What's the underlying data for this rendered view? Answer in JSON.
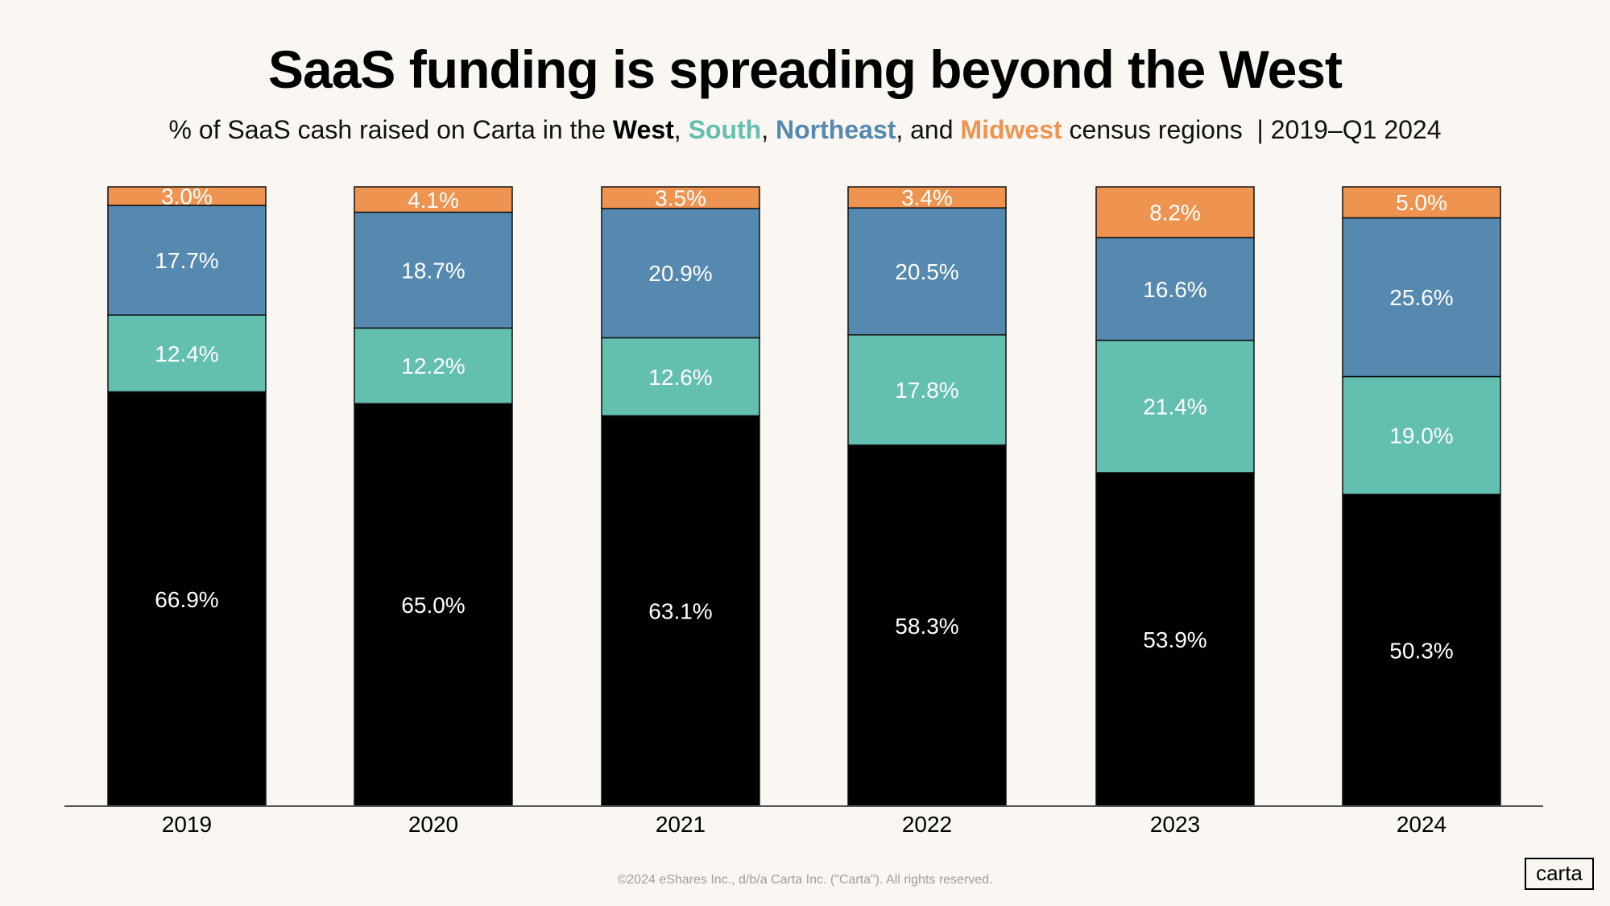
{
  "title": "SaaS funding is spreading beyond the West",
  "subtitle": {
    "prefix": "% of SaaS cash raised on Carta in the ",
    "west": "West",
    "sep1": ", ",
    "south": "South",
    "sep2": ", ",
    "northeast": "Northeast",
    "sep3": ", and ",
    "midwest": "Midwest",
    "suffix": " census regions  | 2019–Q1 2024"
  },
  "footer": "©2024 eShares Inc., d/b/a Carta Inc. (\"Carta\"). All rights reserved.",
  "logo": "carta",
  "colors": {
    "West": "#000000",
    "South": "#63bfb0",
    "Northeast": "#5589b0",
    "Midwest": "#ee9350",
    "background": "#faf7f2"
  },
  "chart_data": {
    "type": "bar",
    "stacked": true,
    "categories": [
      "2019",
      "2020",
      "2021",
      "2022",
      "2023",
      "2024"
    ],
    "series": [
      {
        "name": "West",
        "values": [
          66.9,
          65.0,
          63.1,
          58.3,
          53.9,
          50.3
        ]
      },
      {
        "name": "South",
        "values": [
          12.4,
          12.2,
          12.6,
          17.8,
          21.4,
          19.0
        ]
      },
      {
        "name": "Northeast",
        "values": [
          17.7,
          18.7,
          20.9,
          20.5,
          16.6,
          25.6
        ]
      },
      {
        "name": "Midwest",
        "values": [
          3.0,
          4.1,
          3.5,
          3.4,
          8.2,
          5.0
        ]
      }
    ],
    "ylim": [
      0,
      100
    ],
    "grid": false,
    "data_labels": true
  }
}
